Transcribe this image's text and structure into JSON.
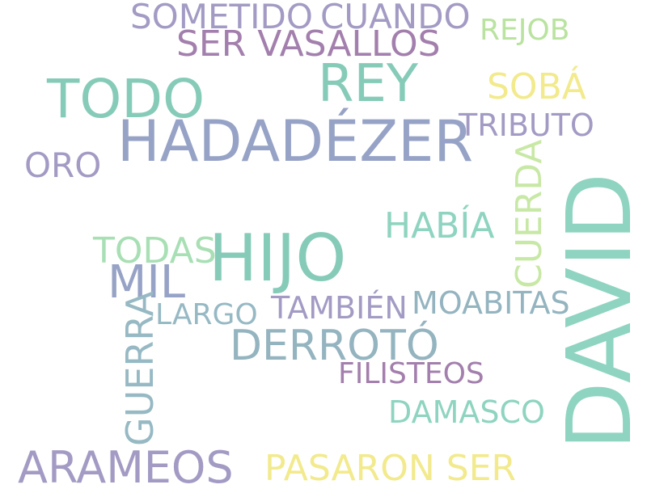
{
  "words": [
    {
      "text": "SOMETIDO",
      "color": "#a39bc4"
    },
    {
      "text": "CUANDO",
      "color": "#a39bc4"
    },
    {
      "text": "REJOB",
      "color": "#b9e39f"
    },
    {
      "text": "SER VASALLOS",
      "color": "#a37fad"
    },
    {
      "text": "REY",
      "color": "#86cbb8"
    },
    {
      "text": "TODO",
      "color": "#86cbb8"
    },
    {
      "text": "SOBÁ",
      "color": "#f2ea8c"
    },
    {
      "text": "HADADÉZER",
      "color": "#97a3c6"
    },
    {
      "text": "TRIBUTO",
      "color": "#a39bc4"
    },
    {
      "text": "ORO",
      "color": "#a39bc4"
    },
    {
      "text": "CUERDA",
      "color": "#c8e8a6"
    },
    {
      "text": "HABÍA",
      "color": "#8fd4c0"
    },
    {
      "text": "TODAS",
      "color": "#a8dfb4"
    },
    {
      "text": "HIJO",
      "color": "#86cbb8"
    },
    {
      "text": "DAVID",
      "color": "#8fd4c0"
    },
    {
      "text": "MIL",
      "color": "#97a3c6"
    },
    {
      "text": "MOABITAS",
      "color": "#94b4c0"
    },
    {
      "text": "LARGO",
      "color": "#97b9c4"
    },
    {
      "text": "TAMBIÉN",
      "color": "#a39bc4"
    },
    {
      "text": "DERROTÓ",
      "color": "#94b4c0"
    },
    {
      "text": "GUERRA",
      "color": "#97b9c4"
    },
    {
      "text": "FILISTEOS",
      "color": "#a37fad"
    },
    {
      "text": "DAMASCO",
      "color": "#8fd4c0"
    },
    {
      "text": "ARAMEOS",
      "color": "#a39bc4"
    },
    {
      "text": "PASARON SER",
      "color": "#f2ea8c"
    }
  ]
}
